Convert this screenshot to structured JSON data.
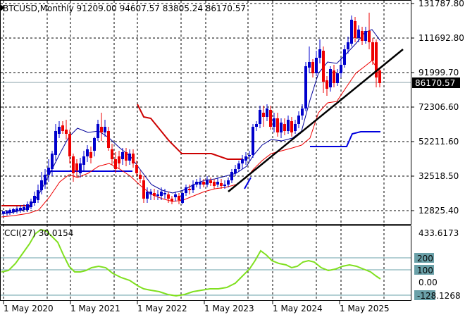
{
  "main_pane": {
    "symbol": "BTCUSD",
    "timeframe": "Monthly",
    "header_text": "BTCUSD,Monthly  91209.00  94607.57  83805.24  86170.57",
    "current_price_label": "86170.57",
    "price_ticks": [
      "131787.80",
      "111692.80",
      "91999.70",
      "72306.60",
      "52211.60",
      "32518.50",
      "12825.40"
    ]
  },
  "cci_pane": {
    "title_text": "CCI(27) 30.0154",
    "tick_labels": [
      "433.6173",
      "200",
      "100",
      "0.00",
      "-128.1268"
    ],
    "line_color": "#80e020",
    "level_color": "#6aa0a8"
  },
  "time_axis": {
    "labels": [
      "1 May 2020",
      "1 May 2021",
      "1 May 2022",
      "1 May 2023",
      "1 May 2024",
      "1 May 2025"
    ]
  },
  "colors": {
    "bull_candle": "#0000cc",
    "bear_candle": "#ee0000",
    "fast_ma": "#ee0000",
    "slow_ma": "#000099",
    "support_line": "#0000dd",
    "resistance_line": "#cc0000",
    "trendline": "#000000",
    "grid": "#000000"
  }
}
